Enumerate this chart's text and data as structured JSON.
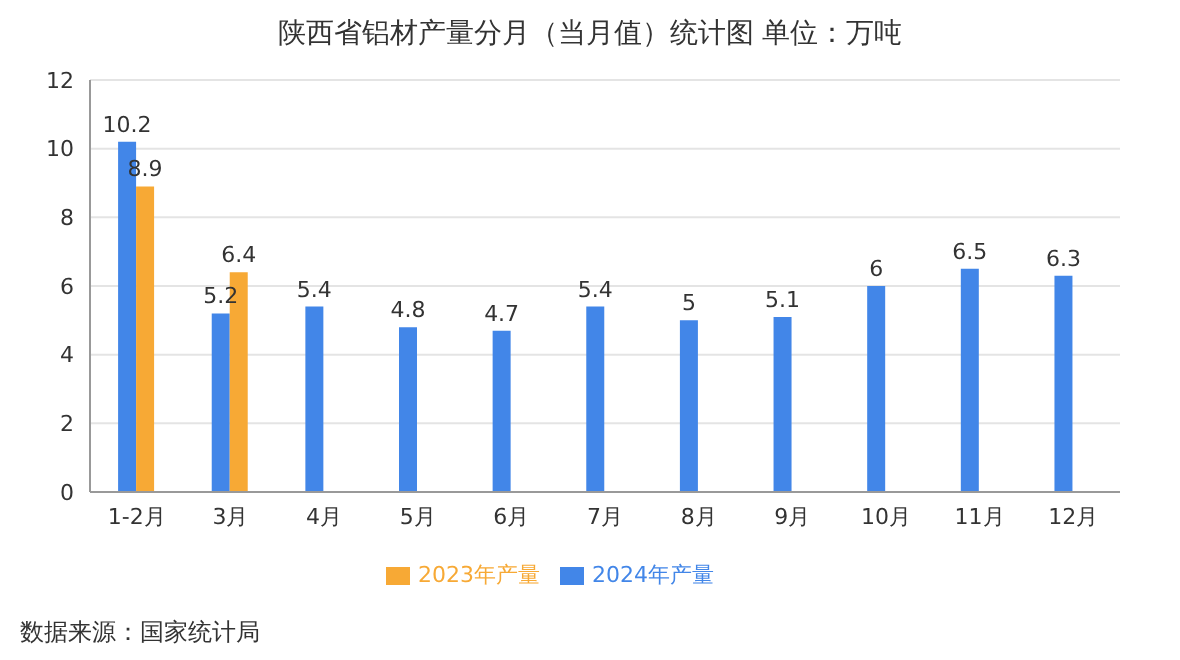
{
  "chart_data": {
    "type": "bar",
    "title": "陕西省铝材产量分月（当月值）统计图 单位：万吨",
    "categories": [
      "1-2月",
      "3月",
      "4月",
      "5月",
      "6月",
      "7月",
      "8月",
      "9月",
      "10月",
      "11月",
      "12月"
    ],
    "series": [
      {
        "name": "2024年产量",
        "color": "#4286e8",
        "values": [
          10.2,
          5.2,
          5.4,
          4.8,
          4.7,
          5.4,
          5,
          5.1,
          6,
          6.5,
          6.3
        ]
      },
      {
        "name": "2023年产量",
        "color": "#f7a935",
        "values": [
          8.9,
          6.4,
          null,
          null,
          null,
          null,
          null,
          null,
          null,
          null,
          null
        ]
      }
    ],
    "ylim": [
      0,
      12
    ],
    "yticks": [
      0,
      2,
      4,
      6,
      8,
      10,
      12
    ],
    "grid": "y",
    "legend": "bottom",
    "data_labels": true,
    "annotations": [
      "数据来源：国家统计局"
    ]
  }
}
